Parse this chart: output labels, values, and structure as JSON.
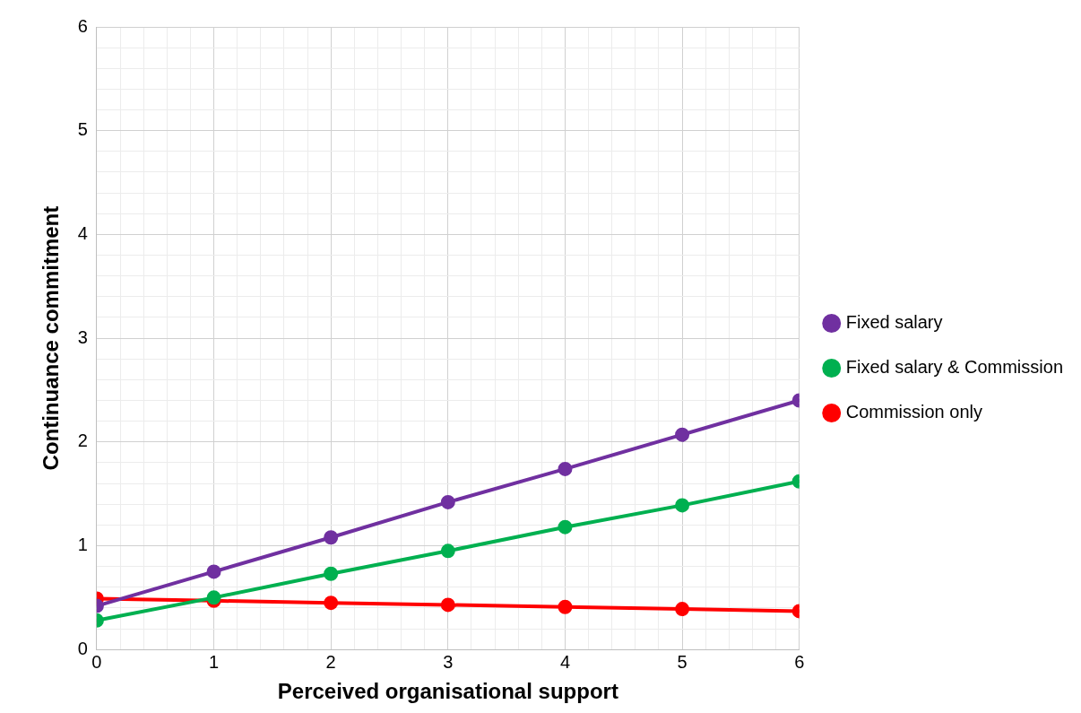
{
  "chart_data": {
    "type": "line",
    "xlabel": "Perceived organisational support",
    "ylabel": "Continuance commitment",
    "x": [
      0,
      1,
      2,
      3,
      4,
      5,
      6
    ],
    "series": [
      {
        "name": "Fixed salary",
        "color": "#7030a0",
        "values": [
          0.42,
          0.75,
          1.08,
          1.42,
          1.74,
          2.07,
          2.4
        ]
      },
      {
        "name": "Fixed salary & Commission",
        "color": "#00b050",
        "values": [
          0.28,
          0.5,
          0.73,
          0.95,
          1.18,
          1.39,
          1.62
        ]
      },
      {
        "name": "Commission only",
        "color": "#ff0000",
        "values": [
          0.49,
          0.47,
          0.45,
          0.43,
          0.41,
          0.39,
          0.37
        ]
      }
    ],
    "xlim": [
      0,
      6
    ],
    "ylim": [
      0,
      6
    ],
    "xticks": [
      0,
      {
        "value": 0.2,
        "label": null
      },
      {
        "value": 0.4,
        "label": null
      },
      {
        "value": 0.6,
        "label": null
      },
      {
        "value": 0.8,
        "label": null
      },
      1,
      {
        "value": 1.2,
        "label": null
      },
      {
        "value": 1.4,
        "label": null
      },
      {
        "value": 1.6,
        "label": null
      },
      {
        "value": 1.8,
        "label": null
      },
      2,
      {
        "value": 2.2,
        "label": null
      },
      {
        "value": 2.4,
        "label": null
      },
      {
        "value": 2.6,
        "label": null
      },
      {
        "value": 2.8,
        "label": null
      },
      3,
      {
        "value": 3.2,
        "label": null
      },
      {
        "value": 3.4,
        "label": null
      },
      {
        "value": 3.6,
        "label": null
      },
      {
        "value": 3.8,
        "label": null
      },
      4,
      {
        "value": 4.2,
        "label": null
      },
      {
        "value": 4.4,
        "label": null
      },
      {
        "value": 4.6,
        "label": null
      },
      {
        "value": 4.8,
        "label": null
      },
      5,
      {
        "value": 5.2,
        "label": null
      },
      {
        "value": 5.4,
        "label": null
      },
      {
        "value": 5.6,
        "label": null
      },
      {
        "value": 5.8,
        "label": null
      },
      6
    ],
    "yticks": [
      0,
      {
        "value": 0.2,
        "label": null
      },
      {
        "value": 0.4,
        "label": null
      },
      {
        "value": 0.6,
        "label": null
      },
      {
        "value": 0.8,
        "label": null
      },
      1,
      {
        "value": 1.2,
        "label": null
      },
      {
        "value": 1.4,
        "label": null
      },
      {
        "value": 1.6,
        "label": null
      },
      {
        "value": 1.8,
        "label": null
      },
      2,
      {
        "value": 2.2,
        "label": null
      },
      {
        "value": 2.4,
        "label": null
      },
      {
        "value": 2.6,
        "label": null
      },
      {
        "value": 2.8,
        "label": null
      },
      3,
      {
        "value": 3.2,
        "label": null
      },
      {
        "value": 3.4,
        "label": null
      },
      {
        "value": 3.6,
        "label": null
      },
      {
        "value": 3.8,
        "label": null
      },
      4,
      {
        "value": 4.2,
        "label": null
      },
      {
        "value": 4.4,
        "label": null
      },
      {
        "value": 4.6,
        "label": null
      },
      {
        "value": 4.8,
        "label": null
      },
      5,
      {
        "value": 5.2,
        "label": null
      },
      {
        "value": 5.4,
        "label": null
      },
      {
        "value": 5.6,
        "label": null
      },
      {
        "value": 5.8,
        "label": null
      },
      6
    ],
    "grid": true,
    "legend": "right",
    "marker": "circle",
    "line_style": "solid"
  }
}
